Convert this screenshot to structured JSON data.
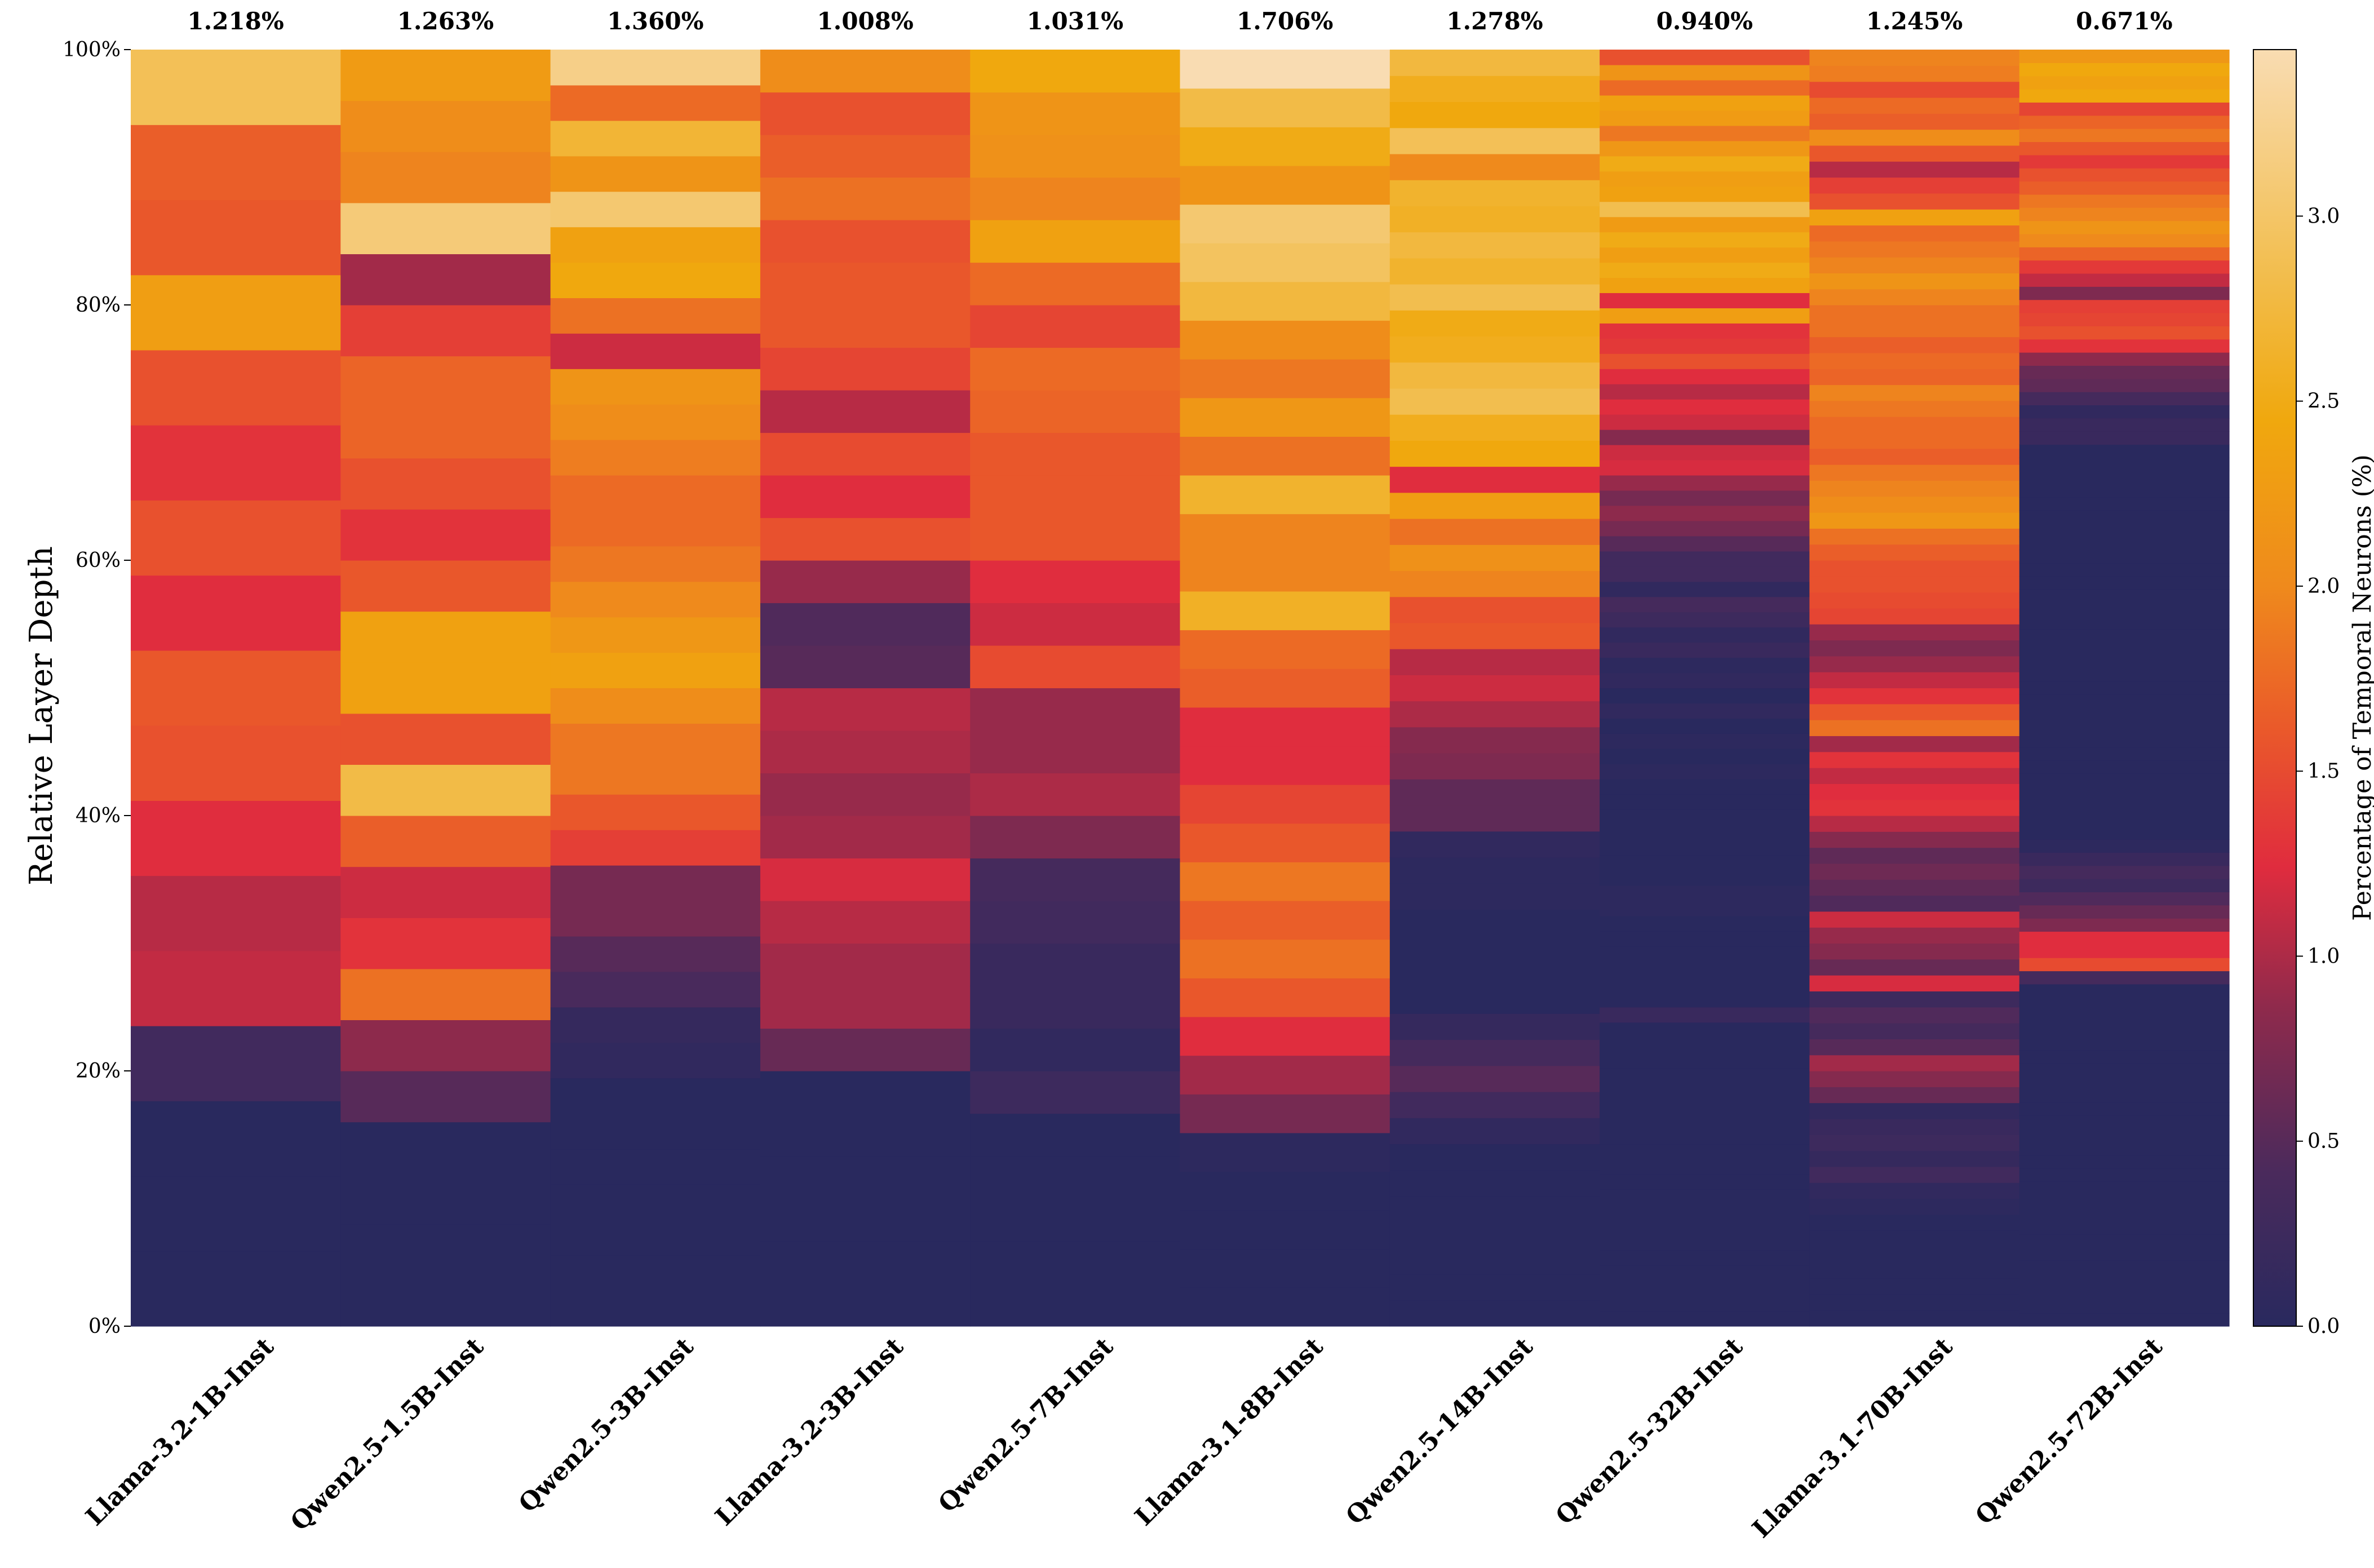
{
  "chart_data": {
    "type": "heatmap",
    "ylabel": "Relative Layer Depth",
    "colorbar_label": "Percentage of Temporal Neurons (%)",
    "y_ticks": [
      "0%",
      "20%",
      "40%",
      "60%",
      "80%",
      "100%"
    ],
    "colorbar_ticks": [
      "0.0",
      "0.5",
      "1.0",
      "1.5",
      "2.0",
      "2.5",
      "3.0"
    ],
    "color_range": [
      0,
      3.45
    ],
    "models": [
      {
        "name": "Llama-3.2-1B-Inst",
        "overall": "1.218%",
        "layers": [
          0,
          0,
          0,
          0.3,
          1.1,
          1.05,
          1.25,
          1.55,
          1.6,
          1.25,
          1.55,
          1.3,
          1.55,
          2.3,
          1.6,
          1.65,
          2.9
        ]
      },
      {
        "name": "Qwen2.5-1.5B-Inst",
        "overall": "1.263%",
        "layers": [
          0,
          0,
          0,
          0,
          0.5,
          0.85,
          1.8,
          1.3,
          1.15,
          1.65,
          2.8,
          1.55,
          2.35,
          2.35,
          1.6,
          1.3,
          1.55,
          1.7,
          1.7,
          1.4,
          0.95,
          3.1,
          1.95,
          2.05,
          2.25
        ]
      },
      {
        "name": "Qwen2.5-3B-Inst",
        "overall": "1.360%",
        "layers": [
          0,
          0,
          0,
          0,
          0,
          0,
          0,
          0.1,
          0.15,
          0.4,
          0.5,
          0.7,
          0.7,
          1.4,
          1.6,
          1.85,
          1.85,
          2.05,
          2.35,
          2.2,
          2.0,
          1.85,
          1.75,
          1.75,
          1.9,
          2.05,
          2.15,
          1.15,
          1.8,
          2.45,
          2.35,
          3.05,
          2.15,
          2.7,
          1.75,
          3.2
        ]
      },
      {
        "name": "Llama-3.2-3B-Inst",
        "overall": "1.008%",
        "layers": [
          0,
          0,
          0,
          0,
          0,
          0,
          0.6,
          0.95,
          0.95,
          1.05,
          1.2,
          0.95,
          0.9,
          1.0,
          1.05,
          0.5,
          0.45,
          0.9,
          1.55,
          1.25,
          1.5,
          1.05,
          1.45,
          1.6,
          1.6,
          1.55,
          1.8,
          1.65,
          1.55,
          2.05
        ]
      },
      {
        "name": "Qwen2.5-7B-Inst",
        "overall": "1.031%",
        "layers": [
          0,
          0,
          0,
          0,
          0,
          0.25,
          0.1,
          0.2,
          0.2,
          0.3,
          0.35,
          0.75,
          1.0,
          0.9,
          0.9,
          1.5,
          1.15,
          1.25,
          1.6,
          1.6,
          1.6,
          1.7,
          1.75,
          1.45,
          1.75,
          2.35,
          1.95,
          2.1,
          2.15,
          2.45
        ]
      },
      {
        "name": "Llama-3.1-8B-Inst",
        "overall": "1.706%",
        "layers": [
          0,
          0,
          0,
          0,
          0.05,
          0.7,
          0.95,
          1.25,
          1.6,
          1.8,
          1.65,
          1.85,
          1.6,
          1.45,
          1.25,
          1.25,
          1.65,
          1.75,
          2.6,
          1.95,
          1.95,
          2.65,
          1.8,
          2.2,
          1.85,
          2.05,
          2.75,
          2.95,
          3.05,
          2.15,
          2.5,
          2.8,
          3.45
        ]
      },
      {
        "name": "Qwen2.5-14B-Inst",
        "overall": "1.278%",
        "layers": [
          0,
          0,
          0,
          0,
          0,
          0,
          0,
          0.1,
          0.3,
          0.5,
          0.35,
          0.15,
          0,
          0,
          0,
          0,
          0.05,
          0.05,
          0.1,
          0.55,
          0.55,
          0.75,
          0.8,
          1.0,
          1.15,
          1.05,
          1.6,
          1.55,
          1.95,
          2.1,
          1.8,
          2.3,
          1.25,
          2.45,
          2.55,
          2.85,
          2.75,
          2.55,
          2.5,
          2.85,
          2.65,
          2.75,
          2.6,
          2.65,
          2.0,
          2.9,
          2.45,
          2.55,
          2.75
        ]
      },
      {
        "name": "Qwen2.5-32B-Inst",
        "overall": "0.940%",
        "layers": [
          0,
          0,
          0,
          0,
          0,
          0,
          0,
          0,
          0,
          0,
          0,
          0,
          0,
          0,
          0,
          0,
          0,
          0,
          0,
          0,
          0.2,
          0,
          0,
          0,
          0,
          0,
          0,
          0.05,
          0.05,
          0,
          0,
          0,
          0,
          0,
          0,
          0,
          0.05,
          0,
          0.05,
          0,
          0.1,
          0,
          0.1,
          0.05,
          0.2,
          0.1,
          0.25,
          0.35,
          0.1,
          0.3,
          0.3,
          0.5,
          0.7,
          0.85,
          0.7,
          0.9,
          1.2,
          1.15,
          0.8,
          1.15,
          1.25,
          1.05,
          1.25,
          1.55,
          1.35,
          1.3,
          2.3,
          1.25,
          2.35,
          2.5,
          2.3,
          2.5,
          2.25,
          2.85,
          2.35,
          2.3,
          2.5,
          2.2,
          1.85,
          2.25,
          2.35,
          1.75,
          2.15,
          1.55
        ]
      },
      {
        "name": "Llama-3.1-70B-Inst",
        "overall": "1.245%",
        "layers": [
          0,
          0,
          0,
          0,
          0,
          0,
          0,
          0.05,
          0.1,
          0.3,
          0.15,
          0.25,
          0.2,
          0.1,
          0.6,
          0.8,
          0.95,
          0.5,
          0.35,
          0.45,
          0.25,
          1.2,
          0.6,
          0.8,
          0.9,
          1.15,
          0.45,
          0.55,
          0.65,
          0.55,
          0.8,
          1.05,
          1.3,
          1.25,
          1.1,
          1.3,
          0.95,
          1.8,
          1.6,
          1.3,
          1.1,
          0.9,
          0.75,
          0.9,
          1.45,
          1.5,
          1.55,
          1.55,
          1.65,
          1.8,
          2.2,
          2.05,
          1.95,
          1.85,
          1.65,
          1.75,
          1.75,
          1.85,
          1.95,
          1.7,
          1.75,
          1.65,
          1.8,
          1.8,
          1.95,
          2.15,
          1.95,
          1.85,
          1.75,
          2.35,
          1.55,
          1.4,
          1.05,
          1.6,
          2.05,
          1.65,
          1.75,
          1.5,
          1.9,
          1.95
        ]
      },
      {
        "name": "Qwen2.5-72B-Inst",
        "overall": "0.671%",
        "layers": [
          0,
          0,
          0,
          0,
          0,
          0,
          0,
          0,
          0,
          0,
          0,
          0,
          0,
          0,
          0,
          0,
          0,
          0,
          0,
          0,
          0,
          0,
          0,
          0,
          0,
          0,
          0.35,
          1.5,
          1.25,
          1.25,
          0.75,
          0.6,
          0.45,
          0.25,
          0.35,
          0.2,
          0.05,
          0,
          0,
          0,
          0,
          0,
          0,
          0,
          0,
          0,
          0,
          0,
          0,
          0,
          0,
          0,
          0,
          0,
          0,
          0,
          0,
          0,
          0,
          0,
          0,
          0,
          0,
          0,
          0,
          0,
          0,
          0.2,
          0.2,
          0.1,
          0.35,
          0.55,
          0.6,
          0.85,
          1.3,
          1.55,
          1.45,
          1.4,
          0.75,
          1.1,
          1.35,
          1.7,
          2.0,
          2.15,
          1.95,
          1.85,
          1.65,
          1.55,
          1.35,
          1.6,
          1.85,
          1.7,
          1.45,
          2.45,
          2.35,
          2.45,
          2.2
        ]
      }
    ]
  }
}
